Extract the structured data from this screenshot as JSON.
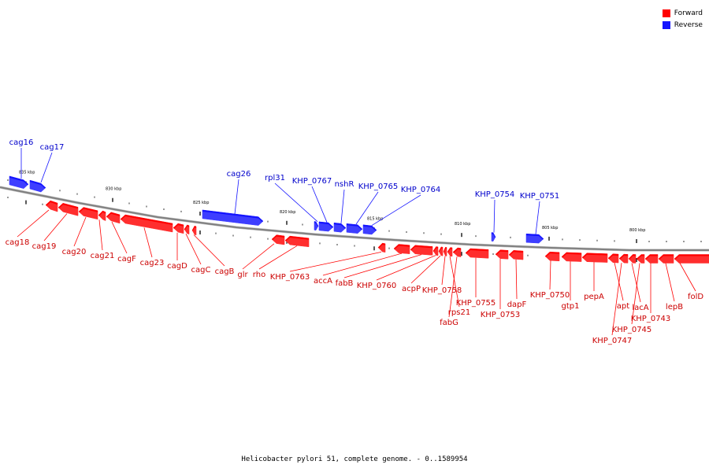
{
  "caption": "Helicobacter pylori 51, complete genome. - 0..1589954",
  "colors": {
    "forward": "#ff0000",
    "reverse": "#1414ff",
    "backbone": "#808080"
  },
  "legend": [
    {
      "label": "Forward",
      "color": "#ff0000"
    },
    {
      "label": "Reverse",
      "color": "#1414ff"
    }
  ],
  "chart_data": {
    "type": "genome-map",
    "kbp_ticks": [
      "835 kbp",
      "830 kbp",
      "825 kbp",
      "820 kbp",
      "815 kbp",
      "810 kbp",
      "805 kbp",
      "800 kbp"
    ],
    "genes": [
      {
        "name": "cag16",
        "strand": "reverse"
      },
      {
        "name": "cag17",
        "strand": "reverse"
      },
      {
        "name": "cag26",
        "strand": "reverse"
      },
      {
        "name": "rpl31",
        "strand": "reverse"
      },
      {
        "name": "KHP_0767",
        "strand": "reverse"
      },
      {
        "name": "nshR",
        "strand": "reverse"
      },
      {
        "name": "KHP_0765",
        "strand": "reverse"
      },
      {
        "name": "KHP_0764",
        "strand": "reverse"
      },
      {
        "name": "KHP_0754",
        "strand": "reverse"
      },
      {
        "name": "KHP_0751",
        "strand": "reverse"
      },
      {
        "name": "cag18",
        "strand": "forward"
      },
      {
        "name": "cag19",
        "strand": "forward"
      },
      {
        "name": "cag20",
        "strand": "forward"
      },
      {
        "name": "cag21",
        "strand": "forward"
      },
      {
        "name": "cagF",
        "strand": "forward"
      },
      {
        "name": "cag23",
        "strand": "forward"
      },
      {
        "name": "cagD",
        "strand": "forward"
      },
      {
        "name": "cagC",
        "strand": "forward"
      },
      {
        "name": "cagB",
        "strand": "forward"
      },
      {
        "name": "glr",
        "strand": "forward"
      },
      {
        "name": "rho",
        "strand": "forward"
      },
      {
        "name": "KHP_0763",
        "strand": "forward"
      },
      {
        "name": "accA",
        "strand": "forward"
      },
      {
        "name": "fabB",
        "strand": "forward"
      },
      {
        "name": "KHP_0760",
        "strand": "forward"
      },
      {
        "name": "acpP",
        "strand": "forward"
      },
      {
        "name": "KHP_0758",
        "strand": "forward"
      },
      {
        "name": "rps21",
        "strand": "forward"
      },
      {
        "name": "fabG",
        "strand": "forward"
      },
      {
        "name": "KHP_0755",
        "strand": "forward"
      },
      {
        "name": "KHP_0753",
        "strand": "forward"
      },
      {
        "name": "dapF",
        "strand": "forward"
      },
      {
        "name": "KHP_0750",
        "strand": "forward"
      },
      {
        "name": "gtp1",
        "strand": "forward"
      },
      {
        "name": "pepA",
        "strand": "forward"
      },
      {
        "name": "apt",
        "strand": "forward"
      },
      {
        "name": "KHP_0747",
        "strand": "forward"
      },
      {
        "name": "lacA",
        "strand": "forward"
      },
      {
        "name": "KHP_0745",
        "strand": "forward"
      },
      {
        "name": "KHP_0743",
        "strand": "forward"
      },
      {
        "name": "lepB",
        "strand": "forward"
      },
      {
        "name": "folD",
        "strand": "forward"
      }
    ]
  }
}
